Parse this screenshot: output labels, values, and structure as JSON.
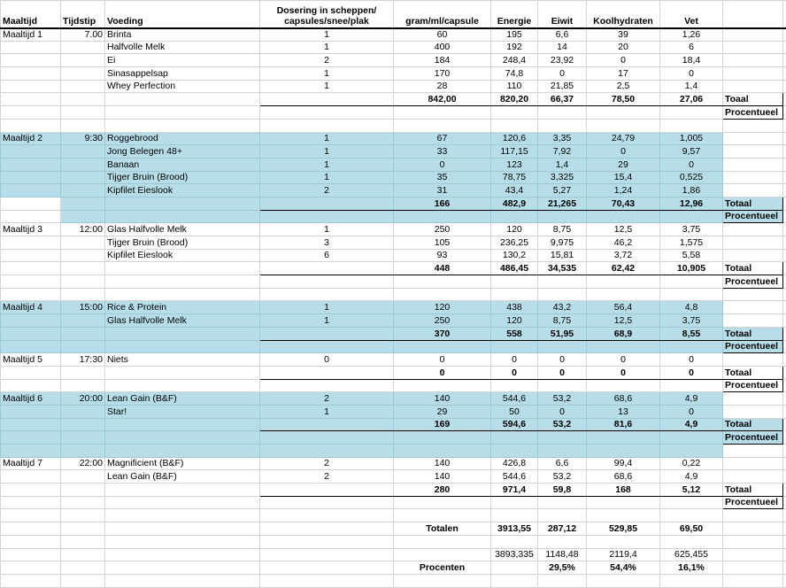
{
  "sheet": {
    "colors": {
      "highlight": "#b7dee8",
      "gridline": "#d4d4d4",
      "section_border": "#000000"
    },
    "columns": {
      "maaltijd": "Maaltijd",
      "tijdstip": "Tijdstip",
      "voeding": "Voeding",
      "dosering_line1": "Dosering in scheppen/",
      "dosering_line2": "capsules/snee/plak",
      "gram": "gram/ml/capsule",
      "energie": "Energie",
      "eiwit": "Eiwit",
      "koolhydraten": "Koolhydraten",
      "vet": "Vet"
    },
    "meals": [
      {
        "name": "Maaltijd 1",
        "time": "7.00",
        "highlighted": false,
        "items": [
          {
            "food": "Brinta",
            "dose": "1",
            "gram": "60",
            "energie": "195",
            "eiwit": "6,6",
            "koolhydraten": "39",
            "vet": "1,26"
          },
          {
            "food": "Halfvolle Melk",
            "dose": "1",
            "gram": "400",
            "energie": "192",
            "eiwit": "14",
            "koolhydraten": "20",
            "vet": "6"
          },
          {
            "food": "Ei",
            "dose": "2",
            "gram": "184",
            "energie": "248,4",
            "eiwit": "23,92",
            "koolhydraten": "0",
            "vet": "18,4"
          },
          {
            "food": "Sinasappelsap",
            "dose": "1",
            "gram": "170",
            "energie": "74,8",
            "eiwit": "0",
            "koolhydraten": "17",
            "vet": "0"
          },
          {
            "food": "Whey Perfection",
            "dose": "1",
            "gram": "28",
            "energie": "110",
            "eiwit": "21,85",
            "koolhydraten": "2,5",
            "vet": "1,4"
          }
        ],
        "totals": {
          "gram": "842,00",
          "energie": "820,20",
          "eiwit": "66,37",
          "koolhydraten": "78,50",
          "vet": "27,06"
        },
        "totals_label": "Toaal",
        "procent_label": "Procentueel",
        "spacer_after": true
      },
      {
        "name": "Maaltijd 2",
        "time": "9:30",
        "highlighted": true,
        "clear_left_on_totals": true,
        "items": [
          {
            "food": "Roggebrood",
            "dose": "1",
            "gram": "67",
            "energie": "120,6",
            "eiwit": "3,35",
            "koolhydraten": "24,79",
            "vet": "1,005"
          },
          {
            "food": "Jong Belegen 48+",
            "dose": "1",
            "gram": "33",
            "energie": "117,15",
            "eiwit": "7,92",
            "koolhydraten": "0",
            "vet": "9,57"
          },
          {
            "food": "Banaan",
            "dose": "1",
            "gram": "0",
            "energie": "123",
            "eiwit": "1,4",
            "koolhydraten": "29",
            "vet": "0"
          },
          {
            "food": "Tijger Bruin (Brood)",
            "dose": "1",
            "gram": "35",
            "energie": "78,75",
            "eiwit": "3,325",
            "koolhydraten": "15,4",
            "vet": "0,525"
          },
          {
            "food": "Kipfilet Eieslook",
            "dose": "2",
            "gram": "31",
            "energie": "43,4",
            "eiwit": "5,27",
            "koolhydraten": "1,24",
            "vet": "1,86"
          }
        ],
        "totals": {
          "gram": "166",
          "energie": "482,9",
          "eiwit": "21,265",
          "koolhydraten": "70,43",
          "vet": "12,96"
        },
        "totals_label": "Totaal",
        "procent_label": "Procentueel"
      },
      {
        "name": "Maaltijd 3",
        "time": "12:00",
        "highlighted": false,
        "items": [
          {
            "food": "Glas Halfvolle Melk",
            "dose": "1",
            "gram": "250",
            "energie": "120",
            "eiwit": "8,75",
            "koolhydraten": "12,5",
            "vet": "3,75"
          },
          {
            "food": "Tijger Bruin (Brood)",
            "dose": "3",
            "gram": "105",
            "energie": "236,25",
            "eiwit": "9,975",
            "koolhydraten": "46,2",
            "vet": "1,575"
          },
          {
            "food": "Kipfilet Eieslook",
            "dose": "6",
            "gram": "93",
            "energie": "130,2",
            "eiwit": "15,81",
            "koolhydraten": "3,72",
            "vet": "5,58"
          }
        ],
        "totals": {
          "gram": "448",
          "energie": "486,45",
          "eiwit": "34,535",
          "koolhydraten": "62,42",
          "vet": "10,905"
        },
        "totals_label": "Totaal",
        "procent_label": "Procentueel",
        "spacer_after": true
      },
      {
        "name": "Maaltijd 4",
        "time": "15:00",
        "highlighted": true,
        "items": [
          {
            "food": "Rice & Protein",
            "dose": "1",
            "gram": "120",
            "energie": "438",
            "eiwit": "43,2",
            "koolhydraten": "56,4",
            "vet": "4,8"
          },
          {
            "food": "Glas Halfvolle Melk",
            "dose": "1",
            "gram": "250",
            "energie": "120",
            "eiwit": "8,75",
            "koolhydraten": "12,5",
            "vet": "3,75"
          }
        ],
        "totals": {
          "gram": "370",
          "energie": "558",
          "eiwit": "51,95",
          "koolhydraten": "68,9",
          "vet": "8,55"
        },
        "totals_label": "Totaal",
        "procent_label": "Procentueel"
      },
      {
        "name": "Maaltijd 5",
        "time": "17:30",
        "highlighted": false,
        "items": [
          {
            "food": "Niets",
            "dose": "0",
            "gram": "0",
            "energie": "0",
            "eiwit": "0",
            "koolhydraten": "0",
            "vet": "0"
          }
        ],
        "totals": {
          "gram": "0",
          "energie": "0",
          "eiwit": "0",
          "koolhydraten": "0",
          "vet": "0"
        },
        "totals_label": "Totaal",
        "procent_label": "Procentueel"
      },
      {
        "name": "Maaltijd 6",
        "time": "20:00",
        "highlighted": true,
        "trailing_blank_row": true,
        "items": [
          {
            "food": "Lean Gain (B&F)",
            "dose": "2",
            "gram": "140",
            "energie": "544,6",
            "eiwit": "53,2",
            "koolhydraten": "68,6",
            "vet": "4,9"
          },
          {
            "food": "Star!",
            "dose": "1",
            "gram": "29",
            "energie": "50",
            "eiwit": "0",
            "koolhydraten": "13",
            "vet": "0"
          }
        ],
        "totals": {
          "gram": "169",
          "energie": "594,6",
          "eiwit": "53,2",
          "koolhydraten": "81,6",
          "vet": "4,9"
        },
        "totals_label": "Totaal",
        "procent_label": "Procentueel"
      },
      {
        "name": "Maaltijd 7",
        "time": "22:00",
        "highlighted": false,
        "items": [
          {
            "food": "Magnificient (B&F)",
            "dose": "2",
            "gram": "140",
            "energie": "426,8",
            "eiwit": "6,6",
            "koolhydraten": "99,4",
            "vet": "0,22"
          },
          {
            "food": "Lean Gain (B&F)",
            "dose": "2",
            "gram": "140",
            "energie": "544,6",
            "eiwit": "53,2",
            "koolhydraten": "68,6",
            "vet": "4,9"
          }
        ],
        "totals": {
          "gram": "280",
          "energie": "971,4",
          "eiwit": "59,8",
          "koolhydraten": "168",
          "vet": "5,12"
        },
        "totals_label": "Totaal",
        "procent_label": "Procentueel",
        "spacer_after": true
      }
    ],
    "summary": {
      "totalen_label": "Totalen",
      "totalen": {
        "energie": "3913,55",
        "eiwit": "287,12",
        "koolhydraten": "529,85",
        "vet": "69,50"
      },
      "kcal": {
        "energie": "3893,335",
        "eiwit": "1148,48",
        "koolhydraten": "2119,4",
        "vet": "625,455"
      },
      "procenten_label": "Procenten",
      "procenten": {
        "eiwit": "29,5%",
        "koolhydraten": "54,4%",
        "vet": "16,1%"
      }
    }
  }
}
